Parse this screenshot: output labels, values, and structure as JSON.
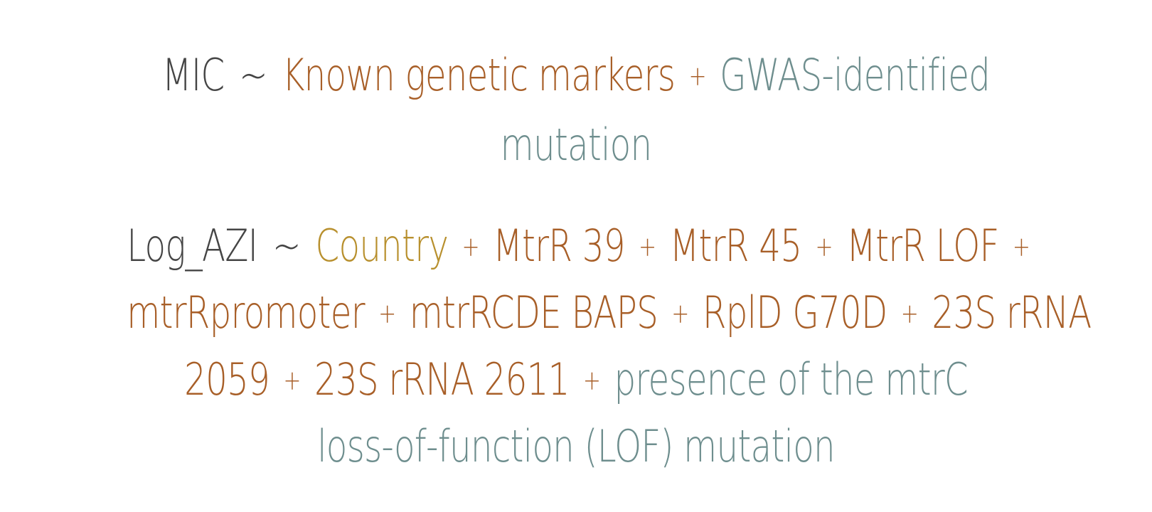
{
  "equation_1": {
    "response": "MIC",
    "tilde": "~",
    "term_known": "Known genetic markers",
    "plus": "+",
    "term_gwas": "GWAS-identified mutation"
  },
  "equation_2": {
    "response": "Log_AZI",
    "tilde": "~",
    "plus": "+",
    "terms": [
      "Country",
      "MtrR 39",
      "MtrR 45",
      "MtrR LOF",
      "mtrRpromoter",
      "mtrRCDE BAPS",
      "RplD G70D",
      "23S rRNA 2059",
      "23S rRNA 2611",
      "presence of the mtrC loss-of-function (LOF) mutation"
    ],
    "line_fragments": {
      "line1_country": "Country",
      "line1_mtrr39": "MtrR 39",
      "line1_mtrr45": "MtrR 45",
      "line1_mtrrlof": "MtrR LOF",
      "line2_promoter": "mtrRpromoter",
      "line2_baps": "mtrRCDE BAPS",
      "line2_rpld": "RplD G70D",
      "line2_23s_a": "23S rRNA",
      "line3_2059": "2059",
      "line3_23s_2611": "23S rRNA 2611",
      "line3_presence": "presence of the mtrC",
      "line4_lof": "loss-of-function (LOF) mutation"
    }
  },
  "colors": {
    "response": "#454545",
    "known_marker_term": "#a85f28",
    "gwas_term": "#6e8e8e",
    "country_term": "#b8902e"
  }
}
